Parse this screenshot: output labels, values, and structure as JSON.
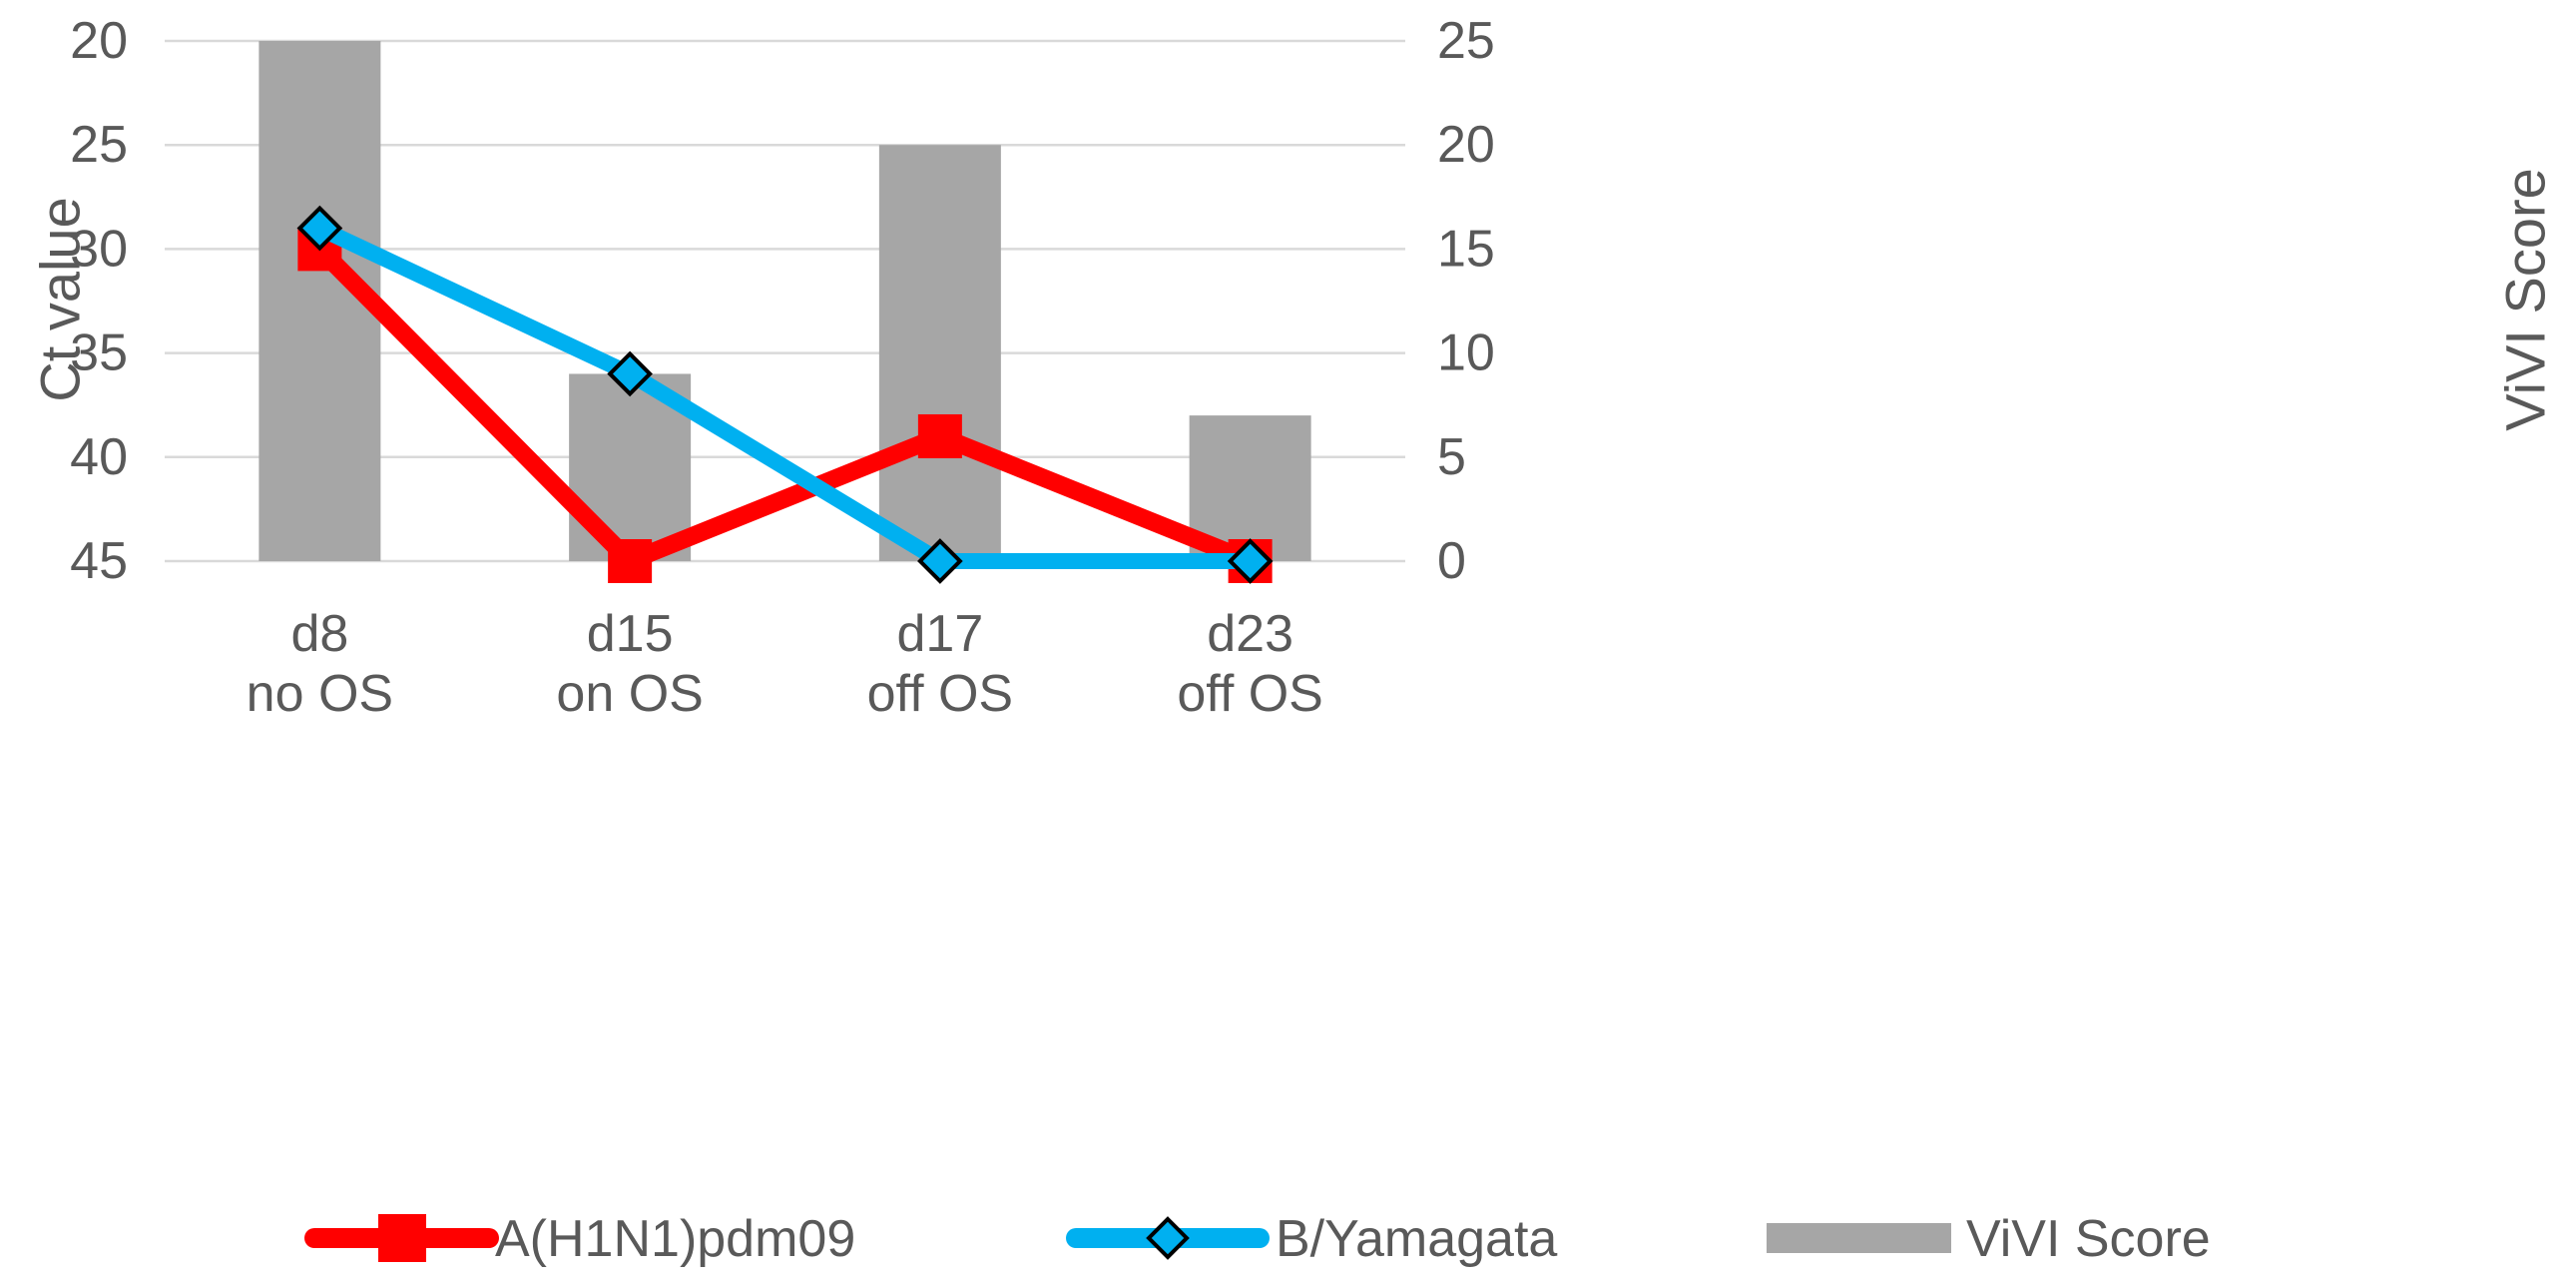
{
  "chart_data": {
    "type": "bar+line",
    "title": "",
    "categories": [
      {
        "line1": "d8",
        "line2": "no OS"
      },
      {
        "line1": "d15",
        "line2": "on OS"
      },
      {
        "line1": "d17",
        "line2": "off OS"
      },
      {
        "line1": "d23",
        "line2": "off OS"
      }
    ],
    "left_axis": {
      "label": "Ct value",
      "range": [
        20,
        45
      ],
      "reversed": true,
      "ticks": [
        "20",
        "25",
        "30",
        "35",
        "40",
        "45"
      ]
    },
    "right_axis": {
      "label": "ViVI Score",
      "range": [
        0,
        25
      ],
      "ticks": [
        "25",
        "20",
        "15",
        "10",
        "5",
        "0"
      ]
    },
    "series": [
      {
        "name": "ViVI Score",
        "type": "bar",
        "axis": "right",
        "color": "#a6a6a6",
        "values": [
          25,
          9,
          20,
          7
        ]
      },
      {
        "name": "A(H1N1)pdm09",
        "type": "line",
        "axis": "left",
        "marker": "square",
        "color": "#ff0000",
        "values": [
          30,
          45,
          39,
          45
        ]
      },
      {
        "name": "B/Yamagata",
        "type": "line",
        "axis": "left",
        "marker": "diamond",
        "color": "#00b0f0",
        "values": [
          29,
          36,
          45,
          45
        ]
      }
    ],
    "legend": {
      "position": "bottom",
      "entries": [
        "A(H1N1)pdm09",
        "B/Yamagata",
        "ViVI Score"
      ]
    },
    "grid": true
  }
}
